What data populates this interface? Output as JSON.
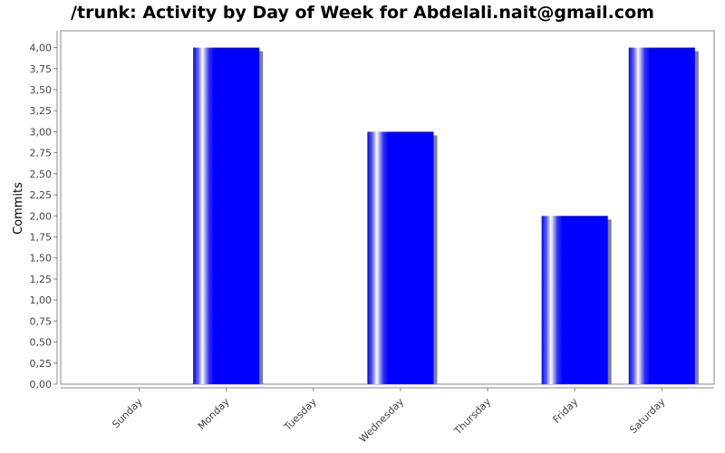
{
  "chart_data": {
    "type": "bar",
    "title": "/trunk: Activity by Day of Week for Abdelali.nait@gmail.com",
    "xlabel": "",
    "ylabel": "Commits",
    "categories": [
      "Sunday",
      "Monday",
      "Tuesday",
      "Wednesday",
      "Thursday",
      "Friday",
      "Saturday"
    ],
    "values": [
      0,
      4,
      0,
      3,
      0,
      2,
      4
    ],
    "ylim": [
      0,
      4.2
    ],
    "yticks": [
      "0,00",
      "0,25",
      "0,50",
      "0,75",
      "1,00",
      "1,25",
      "1,50",
      "1,75",
      "2,00",
      "2,25",
      "2,50",
      "2,75",
      "3,00",
      "3,25",
      "3,50",
      "3,75",
      "4,00"
    ],
    "ytick_values": [
      0,
      0.25,
      0.5,
      0.75,
      1,
      1.25,
      1.5,
      1.75,
      2,
      2.25,
      2.5,
      2.75,
      3,
      3.25,
      3.5,
      3.75,
      4
    ],
    "grid": false,
    "colors": {
      "bar": "#0000ff",
      "bar_highlight": "#ffffff",
      "shadow": "#808080",
      "axis": "#888888"
    }
  }
}
